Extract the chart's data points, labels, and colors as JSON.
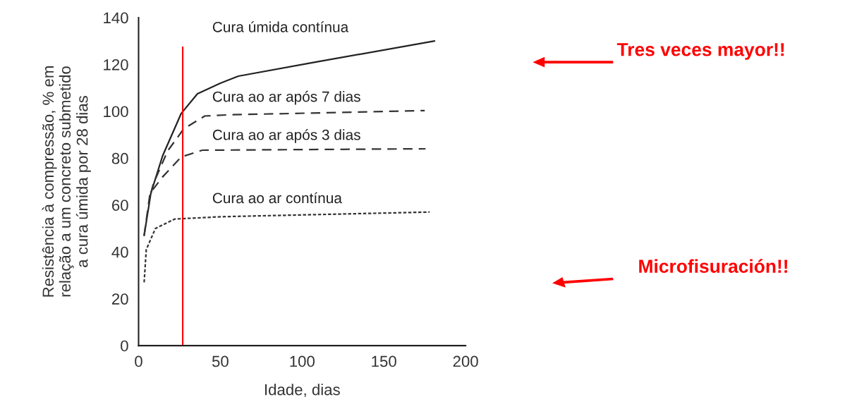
{
  "chart_data": {
    "type": "line",
    "xlabel": "Idade, dias",
    "ylabel": "Resistência à compressão, % em\nrelação a um concreto submetido\na cura úmida por 28 dias",
    "xlim": [
      0,
      200
    ],
    "xticks": [
      0,
      50,
      100,
      150,
      200
    ],
    "ylim": [
      0,
      140
    ],
    "yticks": [
      0,
      20,
      40,
      60,
      80,
      100,
      120,
      140
    ],
    "grid": false,
    "series": [
      {
        "name": "Cura úmida contínua",
        "color": "#222222",
        "line_style": "solid",
        "x": [
          3.4,
          7.5,
          14.7,
          26,
          36,
          50,
          61,
          108,
          181
        ],
        "values": [
          47,
          65,
          81,
          99,
          107.5,
          112,
          115,
          121,
          130
        ]
      },
      {
        "name": "Cura ao ar após 7 dias",
        "color": "#333333",
        "line_style": "dashed",
        "x": [
          7.5,
          9,
          17.7,
          27.6,
          40.5,
          55,
          175
        ],
        "values": [
          65,
          69,
          83,
          92.5,
          98,
          98.5,
          100.3
        ]
      },
      {
        "name": "Cura ao ar após 3 dias",
        "color": "#333333",
        "line_style": "dashed",
        "x": [
          3.4,
          7,
          14.7,
          26,
          39,
          175.5
        ],
        "values": [
          47,
          65,
          72,
          80.5,
          83.4,
          84
        ]
      },
      {
        "name": "Cura ao ar contínua",
        "color": "#333333",
        "line_style": "dotted",
        "x": [
          3.4,
          4.7,
          10.3,
          22,
          50,
          178
        ],
        "values": [
          27,
          41,
          50,
          54,
          55,
          57
        ]
      }
    ],
    "ref_lines": [
      {
        "axis": "x",
        "value": 27,
        "color": "#ff0000"
      }
    ],
    "annotations": [
      "Tres veces mayor!!",
      "Microfisuración!!"
    ]
  }
}
